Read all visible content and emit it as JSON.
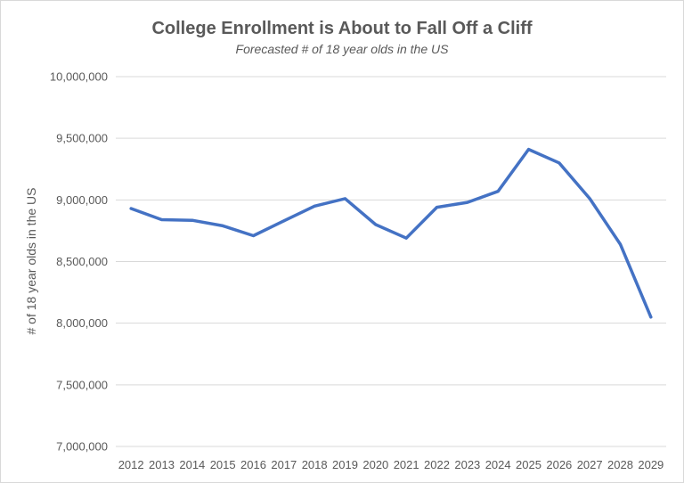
{
  "chart_data": {
    "type": "line",
    "title": "College Enrollment is About to Fall Off a Cliff",
    "subtitle": "Forecasted # of 18 year olds in the US",
    "xlabel": "",
    "ylabel": "# of 18 year olds in the US",
    "ylim": [
      7000000,
      10000000
    ],
    "y_ticks": [
      "7,000,000",
      "7,500,000",
      "8,000,000",
      "8,500,000",
      "9,000,000",
      "9,500,000",
      "10,000,000"
    ],
    "y_tick_values": [
      7000000,
      7500000,
      8000000,
      8500000,
      9000000,
      9500000,
      10000000
    ],
    "grid": true,
    "legend": "none",
    "x": [
      "2012",
      "2013",
      "2014",
      "2015",
      "2016",
      "2017",
      "2018",
      "2019",
      "2020",
      "2021",
      "2022",
      "2023",
      "2024",
      "2025",
      "2026",
      "2027",
      "2028",
      "2029"
    ],
    "series": [
      {
        "values": [
          8930000,
          8840000,
          8835000,
          8790000,
          8710000,
          8830000,
          8950000,
          9010000,
          8800000,
          8690000,
          8940000,
          8980000,
          9070000,
          9410000,
          9300000,
          9010000,
          8640000,
          8050000
        ],
        "color": "#4472c4"
      }
    ],
    "colors": {
      "gridline": "#d9d9d9",
      "text": "#595959",
      "line": "#4472c4"
    }
  }
}
